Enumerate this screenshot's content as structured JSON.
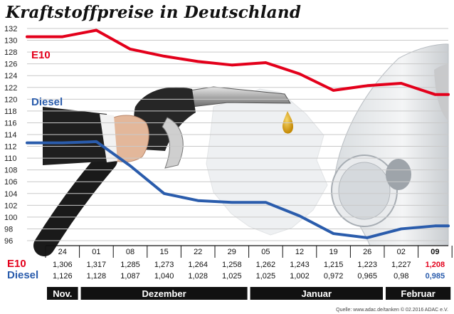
{
  "title": "Kraftstoffpreise in Deutschland",
  "source": "Quelle: www.adac.de/tanken  © 02.2016  ADAC e.V.",
  "chart_data": {
    "type": "line",
    "title": "Kraftstoffpreise in Deutschland",
    "xlabel": "",
    "ylabel": "",
    "ylim": [
      96,
      132
    ],
    "yticks": [
      "132",
      "130",
      "128",
      "126",
      "124",
      "122",
      "120",
      "118",
      "116",
      "114",
      "112",
      "110",
      "108",
      "106",
      "104",
      "102",
      "100",
      "98",
      "96"
    ],
    "grid": true,
    "categories": [
      "24",
      "01",
      "08",
      "15",
      "22",
      "29",
      "05",
      "12",
      "19",
      "26",
      "02",
      "09"
    ],
    "months": [
      {
        "label": "Nov.",
        "span": [
          0,
          0
        ]
      },
      {
        "label": "Dezember",
        "span": [
          1,
          5
        ]
      },
      {
        "label": "Januar",
        "span": [
          6,
          9
        ]
      },
      {
        "label": "Februar",
        "span": [
          10,
          11
        ]
      }
    ],
    "series": [
      {
        "name": "E10",
        "color": "#e3001b",
        "values": [
          130.6,
          131.7,
          128.5,
          127.3,
          126.4,
          125.8,
          126.2,
          124.3,
          121.5,
          122.3,
          122.7,
          120.8
        ],
        "table_values": [
          "1,306",
          "1,317",
          "1,285",
          "1,273",
          "1,264",
          "1,258",
          "1,262",
          "1,243",
          "1,215",
          "1,223",
          "1,227",
          "1,208"
        ]
      },
      {
        "name": "Diesel",
        "color": "#2a5cac",
        "values": [
          112.6,
          112.8,
          108.7,
          104.0,
          102.8,
          102.5,
          102.5,
          100.2,
          97.2,
          96.5,
          98.0,
          98.5
        ],
        "table_values": [
          "1,126",
          "1,128",
          "1,087",
          "1,040",
          "1,028",
          "1,025",
          "1,025",
          "1,002",
          "0,972",
          "0,965",
          "0,98",
          "0,985"
        ]
      }
    ]
  }
}
